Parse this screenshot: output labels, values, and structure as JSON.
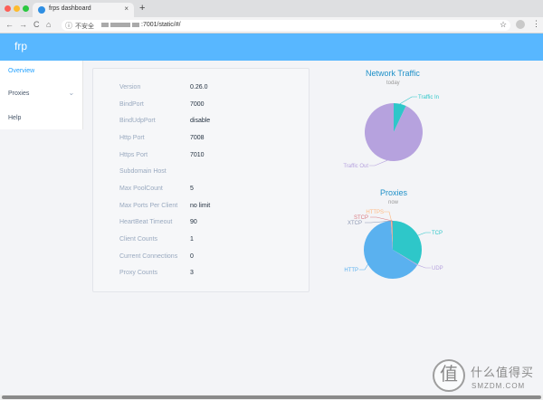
{
  "browser": {
    "tab_title": "frps dashboard",
    "tab_close": "×",
    "new_tab": "+",
    "back": "←",
    "forward": "→",
    "reload": "C",
    "home": "⌂",
    "info_icon": "ⓘ",
    "insecure_label": "不安全",
    "url_suffix": ":7001/static/#/",
    "star": "☆",
    "menu": "⋮"
  },
  "app": {
    "brand": "frp"
  },
  "sidebar": {
    "items": [
      {
        "label": "Overview"
      },
      {
        "label": "Proxies",
        "chevron": "⌄"
      },
      {
        "label": "Help"
      }
    ]
  },
  "info": {
    "rows": [
      {
        "label": "Version",
        "value": "0.26.0"
      },
      {
        "label": "BindPort",
        "value": "7000"
      },
      {
        "label": "BindUdpPort",
        "value": "disable"
      },
      {
        "label": "Http Port",
        "value": "7008"
      },
      {
        "label": "Https Port",
        "value": "7010"
      },
      {
        "label": "Subdomain Host",
        "value": ""
      },
      {
        "label": "Max PoolCount",
        "value": "5"
      },
      {
        "label": "Max Ports Per Client",
        "value": "no limit"
      },
      {
        "label": "HeartBeat Timeout",
        "value": "90"
      },
      {
        "label": "Client Counts",
        "value": "1"
      },
      {
        "label": "Current Connections",
        "value": "0"
      },
      {
        "label": "Proxy Counts",
        "value": "3"
      }
    ]
  },
  "chart_data": [
    {
      "type": "pie",
      "title": "Network Traffic",
      "subtitle": "today",
      "slices": [
        {
          "name": "Traffic In",
          "value": 7,
          "color": "#2ec7c9"
        },
        {
          "name": "Traffic Out",
          "value": 93,
          "color": "#b6a2de"
        }
      ]
    },
    {
      "type": "pie",
      "title": "Proxies",
      "subtitle": "now",
      "slices": [
        {
          "name": "TCP",
          "value": 33.5,
          "color": "#2ec7c9"
        },
        {
          "name": "UDP",
          "value": 0.5,
          "color": "#b6a2de"
        },
        {
          "name": "HTTP",
          "value": 65,
          "color": "#5ab1ef"
        },
        {
          "name": "HTTPS",
          "value": 0.5,
          "color": "#ffb980"
        },
        {
          "name": "STCP",
          "value": 0.25,
          "color": "#d87a80"
        },
        {
          "name": "XTCP",
          "value": 0.25,
          "color": "#8d98b3"
        }
      ]
    }
  ],
  "watermark": {
    "glyph": "值",
    "cn": "什么值得买",
    "en": "SMZDM.COM"
  }
}
